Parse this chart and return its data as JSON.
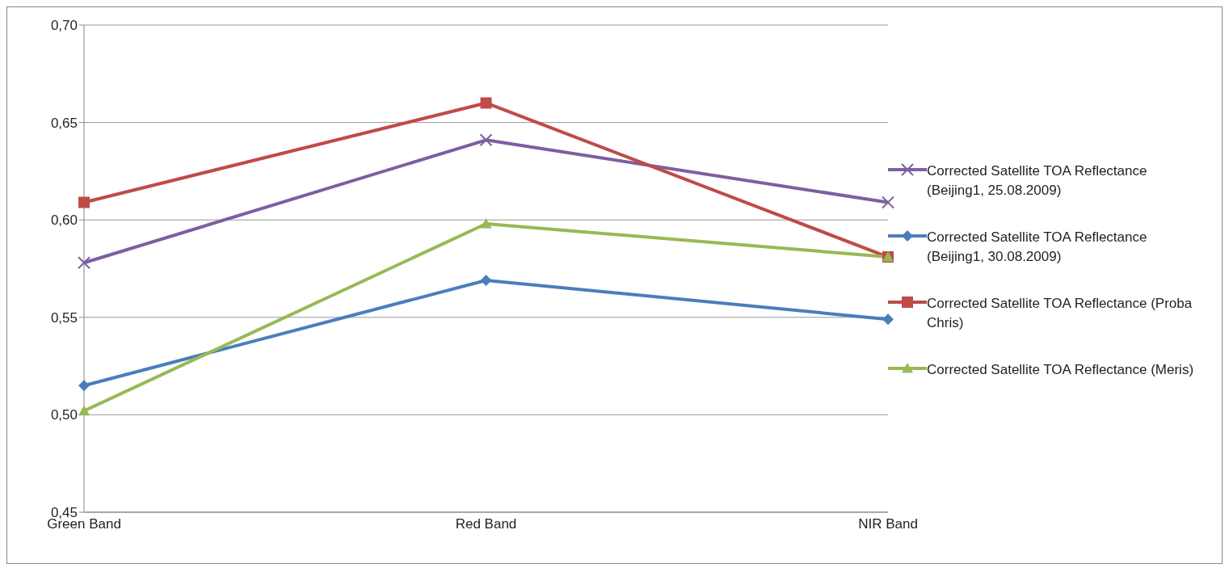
{
  "chart_data": {
    "type": "line",
    "categories": [
      "Green Band",
      "Red Band",
      "NIR Band"
    ],
    "series": [
      {
        "name": "Corrected Satellite TOA Reflectance (Beijing1, 25.08.2009)",
        "color": "#7d5fa0",
        "marker": "cross",
        "values": [
          0.578,
          0.641,
          0.609
        ]
      },
      {
        "name": "Corrected Satellite TOA Reflectance (Beijing1, 30.08.2009)",
        "color": "#4a7ebb",
        "marker": "diamond",
        "values": [
          0.515,
          0.569,
          0.549
        ]
      },
      {
        "name": "Corrected Satellite TOA Reflectance (Proba Chris)",
        "color": "#be4b48",
        "marker": "square",
        "values": [
          0.609,
          0.66,
          0.581
        ]
      },
      {
        "name": "Corrected Satellite TOA Reflectance (Meris)",
        "color": "#98b954",
        "marker": "triangle",
        "values": [
          0.502,
          0.598,
          0.581
        ]
      }
    ],
    "ylim": [
      0.45,
      0.7
    ],
    "yticks": [
      {
        "value": 0.45,
        "label": "0,45"
      },
      {
        "value": 0.5,
        "label": "0,50"
      },
      {
        "value": 0.55,
        "label": "0,55"
      },
      {
        "value": 0.6,
        "label": "0,60"
      },
      {
        "value": 0.65,
        "label": "0,65"
      },
      {
        "value": 0.7,
        "label": "0,70"
      }
    ],
    "grid": "y",
    "legend": "right"
  }
}
